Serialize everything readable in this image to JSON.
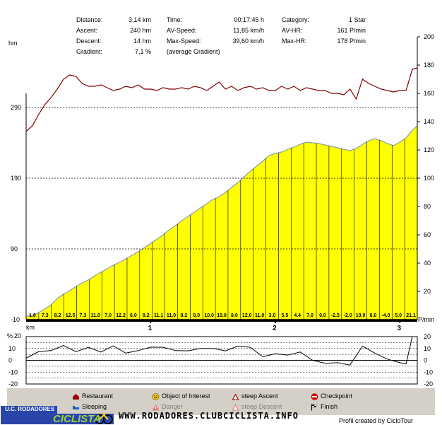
{
  "stats": {
    "col1": [
      {
        "label": "Distance:",
        "value": "3,14 km"
      },
      {
        "label": "Ascent:",
        "value": "240 hm"
      },
      {
        "label": "Descent:",
        "value": "14 hm"
      },
      {
        "label": "Gradient:",
        "value": "7,1 %"
      }
    ],
    "col2": [
      {
        "label": "Time:",
        "value": "00:17:45 h"
      },
      {
        "label": "AV-Speed:",
        "value": "11,85 km/h"
      },
      {
        "label": "Max-Speed:",
        "value": "39,60 km/h"
      },
      {
        "label": "(average Gradient)",
        "value": ""
      }
    ],
    "col3": [
      {
        "label": "Category:",
        "value": "1 Star"
      },
      {
        "label": "AV-HR:",
        "value": "161 P/min"
      },
      {
        "label": "Max-HR:",
        "value": "178 P/min"
      }
    ]
  },
  "chart_data": [
    {
      "type": "area",
      "ylabel": "hm",
      "y2label": "P/min",
      "xlabel": "km",
      "xlim": [
        0,
        3.14
      ],
      "ylim": [
        -10,
        390
      ],
      "y2lim": [
        0,
        200
      ],
      "left_ticks": [
        "290",
        "190",
        "90",
        "-10"
      ],
      "left_tick_values": [
        290,
        190,
        90,
        -10
      ],
      "right_ticks": [
        "200",
        "180",
        "160",
        "140",
        "120",
        "100",
        "80",
        "60",
        "40",
        "20"
      ],
      "right_tick_values": [
        200,
        180,
        160,
        140,
        120,
        100,
        80,
        60,
        40,
        20
      ],
      "x_ticks": [
        "1",
        "2",
        "3"
      ],
      "x_tick_values": [
        1,
        2,
        3
      ],
      "grid": "dashed horizontal at 290, 190, 90",
      "fill_color": "#ffff00",
      "elevation": {
        "x": [
          0,
          0.05,
          0.1,
          0.15,
          0.2,
          0.25,
          0.3,
          0.35,
          0.4,
          0.45,
          0.5,
          0.55,
          0.6,
          0.65,
          0.7,
          0.75,
          0.8,
          0.85,
          0.9,
          0.95,
          1.0,
          1.05,
          1.1,
          1.15,
          1.2,
          1.25,
          1.3,
          1.35,
          1.4,
          1.45,
          1.5,
          1.55,
          1.6,
          1.65,
          1.7,
          1.75,
          1.8,
          1.85,
          1.9,
          1.95,
          2.0,
          2.05,
          2.1,
          2.15,
          2.2,
          2.25,
          2.3,
          2.35,
          2.4,
          2.45,
          2.5,
          2.55,
          2.6,
          2.65,
          2.7,
          2.75,
          2.8,
          2.85,
          2.9,
          2.95,
          3.0,
          3.05,
          3.1,
          3.14
        ],
        "values": [
          -5,
          -4,
          0,
          5,
          11,
          20,
          26,
          31,
          37,
          42,
          46,
          52,
          57,
          62,
          67,
          71,
          76,
          81,
          86,
          92,
          98,
          104,
          110,
          117,
          123,
          130,
          136,
          142,
          148,
          154,
          160,
          164,
          170,
          177,
          184,
          192,
          200,
          207,
          214,
          222,
          225,
          227,
          231,
          234,
          238,
          241,
          240,
          239,
          237,
          235,
          233,
          231,
          229,
          232,
          238,
          243,
          246,
          243,
          239,
          236,
          241,
          247,
          258,
          264
        ]
      },
      "gradients": [
        "1.8",
        "7.3",
        "8.2",
        "12.5",
        "7.3",
        "11.0",
        "7.0",
        "12.2",
        "6.0",
        "8.2",
        "11.1",
        "11.0",
        "8.2",
        "8.0",
        "10.0",
        "10.0",
        "8.0",
        "12.0",
        "11.0",
        "3.0",
        "5.5",
        "4.4",
        "7.0",
        "0.0",
        "-2.5",
        "-2.0",
        "10.0",
        "6.0",
        "-4.0",
        "5.0",
        "21.1"
      ],
      "heart_rate": {
        "label": "P/min",
        "color": "#800000",
        "x": [
          0,
          0.05,
          0.1,
          0.15,
          0.2,
          0.25,
          0.3,
          0.35,
          0.4,
          0.45,
          0.5,
          0.55,
          0.6,
          0.65,
          0.7,
          0.75,
          0.8,
          0.85,
          0.9,
          0.95,
          1.0,
          1.05,
          1.1,
          1.15,
          1.2,
          1.25,
          1.3,
          1.35,
          1.4,
          1.45,
          1.5,
          1.55,
          1.6,
          1.65,
          1.7,
          1.75,
          1.8,
          1.85,
          1.9,
          1.95,
          2.0,
          2.05,
          2.1,
          2.15,
          2.2,
          2.25,
          2.3,
          2.35,
          2.4,
          2.45,
          2.5,
          2.55,
          2.6,
          2.65,
          2.7,
          2.75,
          2.8,
          2.85,
          2.9,
          2.95,
          3.0,
          3.05,
          3.1,
          3.14
        ],
        "values": [
          133,
          137,
          145,
          152,
          157,
          163,
          170,
          173,
          172,
          167,
          165,
          165,
          166,
          164,
          162,
          163,
          165,
          164,
          166,
          163,
          163,
          162,
          164,
          163,
          163,
          164,
          163,
          165,
          164,
          162,
          165,
          168,
          163,
          165,
          162,
          164,
          165,
          163,
          164,
          162,
          162,
          165,
          163,
          165,
          162,
          164,
          163,
          162,
          162,
          160,
          160,
          159,
          163,
          156,
          170,
          167,
          165,
          163,
          162,
          161,
          162,
          162,
          177,
          178
        ]
      }
    },
    {
      "type": "line",
      "ylabel": "%",
      "ylim": [
        -20,
        20
      ],
      "left_ticks": [
        "20",
        "10",
        "0",
        "-10",
        "-20"
      ],
      "left_tick_values": [
        20,
        10,
        0,
        -10,
        -20
      ],
      "right_ticks": [
        "20",
        "10",
        "0",
        "-10",
        "-20"
      ],
      "x": [
        0,
        0.1,
        0.2,
        0.3,
        0.4,
        0.5,
        0.6,
        0.7,
        0.8,
        0.9,
        1.0,
        1.1,
        1.2,
        1.3,
        1.4,
        1.5,
        1.6,
        1.7,
        1.8,
        1.9,
        2.0,
        2.1,
        2.2,
        2.3,
        2.4,
        2.5,
        2.6,
        2.7,
        2.8,
        2.9,
        3.0,
        3.05,
        3.1,
        3.14
      ],
      "values": [
        1.8,
        7.3,
        8.2,
        12.5,
        7.3,
        11.0,
        7.0,
        12.2,
        6.0,
        8.2,
        11.1,
        11.0,
        8.2,
        8.0,
        10.0,
        10.0,
        8.0,
        12.0,
        11.0,
        3.0,
        5.5,
        4.4,
        7.0,
        0.0,
        -2.5,
        -2.0,
        -4.0,
        12.0,
        6.0,
        1.0,
        -2.0,
        -3.0,
        21.1,
        21.1
      ]
    }
  ],
  "legend": {
    "items": [
      {
        "label": "Restaurant",
        "icon": "house-icon",
        "dim": false
      },
      {
        "label": "Object of Interest",
        "icon": "smiley-icon",
        "dim": false
      },
      {
        "label": "steep Ascent",
        "icon": "warning-icon",
        "dim": false
      },
      {
        "label": "Checkpoint",
        "icon": "stop-icon",
        "dim": false
      },
      {
        "label": "Sleeping",
        "icon": "bed-icon",
        "dim": false
      },
      {
        "label": "Danger",
        "icon": "danger-icon",
        "dim": true
      },
      {
        "label": "steep Descent",
        "icon": "warning-icon",
        "dim": true
      },
      {
        "label": "Finish",
        "icon": "flag-icon",
        "dim": false
      }
    ]
  },
  "footer": {
    "logo_top": "U.C. RODADORES",
    "logo_bottom": "CICLISTA",
    "site": "WWW.RODADORES.CLUBCICLISTA.INFO",
    "credit": "Profil created by CicloTour"
  }
}
